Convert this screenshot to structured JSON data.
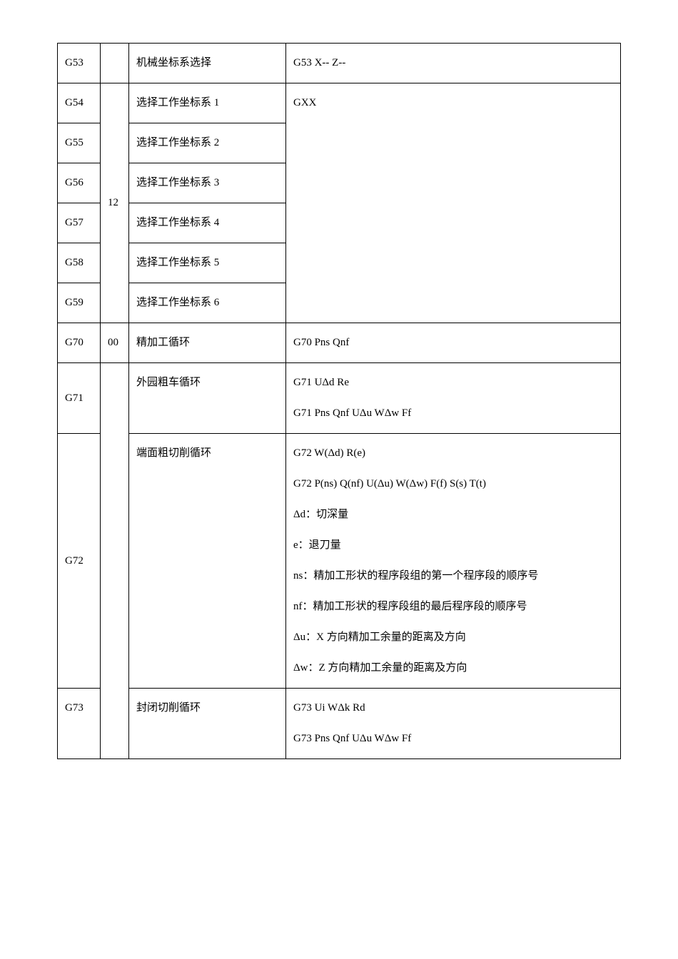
{
  "table": {
    "columns": [
      "code",
      "group",
      "name",
      "desc"
    ],
    "col_widths": [
      "60px",
      "40px",
      "220px",
      "auto"
    ],
    "border_color": "#000000",
    "font_size": 15,
    "text_color": "#000000",
    "background_color": "#ffffff",
    "rows": [
      {
        "code": "G53",
        "group": "",
        "name": "机械坐标系选择",
        "desc": [
          "G53 X-- Z--"
        ]
      },
      {
        "code": "G54",
        "group": "12",
        "name": "选择工作坐标系 1",
        "desc": [
          "GXX"
        ]
      },
      {
        "code": "G55",
        "group": "",
        "name": "选择工作坐标系 2",
        "desc": []
      },
      {
        "code": "G56",
        "group": "",
        "name": "选择工作坐标系 3",
        "desc": []
      },
      {
        "code": "G57",
        "group": "",
        "name": "选择工作坐标系 4",
        "desc": []
      },
      {
        "code": "G58",
        "group": "",
        "name": "选择工作坐标系 5",
        "desc": []
      },
      {
        "code": "G59",
        "group": "",
        "name": "选择工作坐标系 6",
        "desc": []
      },
      {
        "code": "G70",
        "group": "00",
        "name": "精加工循环",
        "desc": [
          "G70 Pns  Qnf"
        ]
      },
      {
        "code": "G71",
        "group": "",
        "name": "外园粗车循环",
        "desc": [
          "G71 UΔd   Re",
          "G71 Pns  Qnf  UΔu  WΔw  Ff"
        ]
      },
      {
        "code": "G72",
        "group": "",
        "name": "端面粗切削循环",
        "desc": [
          "G72 W(Δd) R(e)",
          "G72 P(ns) Q(nf) U(Δu) W(Δw) F(f) S(s) T(t)",
          "Δd：切深量",
          "e：退刀量",
          "ns：精加工形状的程序段组的第一个程序段的顺序号",
          "nf：精加工形状的程序段组的最后程序段的顺序号",
          "Δu：X 方向精加工余量的距离及方向",
          "Δw：Z 方向精加工余量的距离及方向"
        ]
      },
      {
        "code": "G73",
        "group": "",
        "name": "封闭切削循环",
        "desc": [
          "G73 Ui  WΔk  Rd",
          "G73 Pns  Qnf  UΔu  WΔw  Ff"
        ]
      }
    ]
  }
}
